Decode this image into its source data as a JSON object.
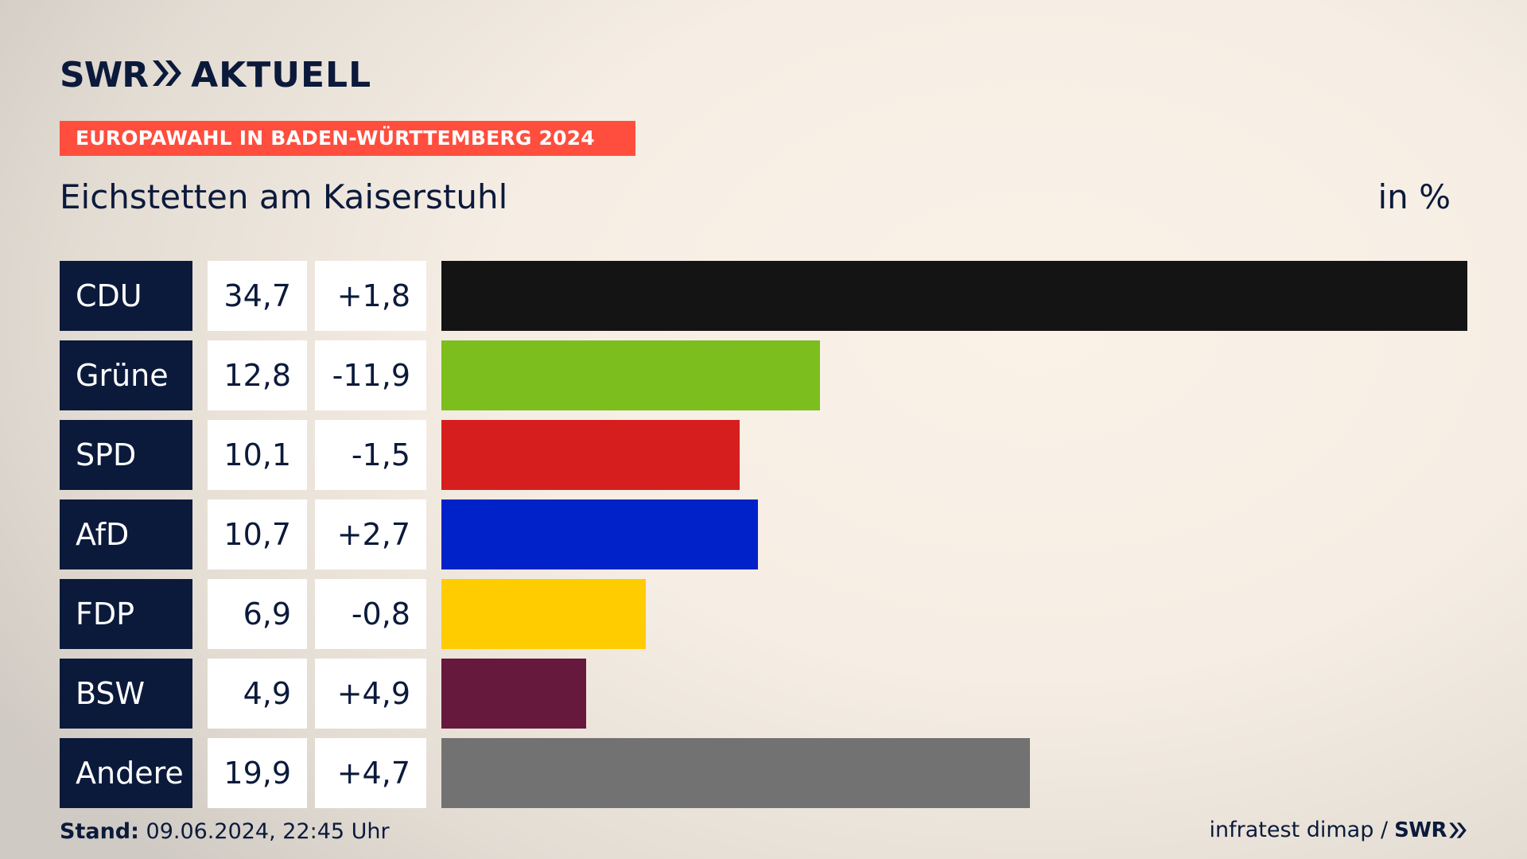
{
  "brand": {
    "logo_left": "SWR",
    "logo_right": "AKTUELL",
    "footer_brand": "SWR"
  },
  "banner": {
    "text": "EUROPAWAHL IN BADEN-WÜRTTEMBERG 2024"
  },
  "header": {
    "place": "Eichstetten am Kaiserstuhl",
    "unit": "in %"
  },
  "footer": {
    "stand_label": "Stand:",
    "stand_value": "09.06.2024, 22:45 Uhr",
    "source": "infratest dimap /"
  },
  "colors": {
    "navy": "#0b1a3b",
    "banner": "#ff4e3e"
  },
  "chart_data": {
    "type": "bar",
    "orientation": "horizontal",
    "title": "Eichstetten am Kaiserstuhl",
    "unit": "in %",
    "xlim": [
      0,
      34.7
    ],
    "categories": [
      "CDU",
      "Grüne",
      "SPD",
      "AfD",
      "FDP",
      "BSW",
      "Andere"
    ],
    "values": [
      34.7,
      12.8,
      10.1,
      10.7,
      6.9,
      4.9,
      19.9
    ],
    "value_labels": [
      "34,7",
      "12,8",
      "10,1",
      "10,7",
      "6,9",
      "4,9",
      "19,9"
    ],
    "diff_labels": [
      "+1,8",
      "-11,9",
      "-1,5",
      "+2,7",
      "-0,8",
      "+4,9",
      "+4,7"
    ],
    "colors": [
      "#141414",
      "#7bbe1e",
      "#d71e1e",
      "#0022c8",
      "#ffcc00",
      "#66183d",
      "#727272"
    ]
  }
}
